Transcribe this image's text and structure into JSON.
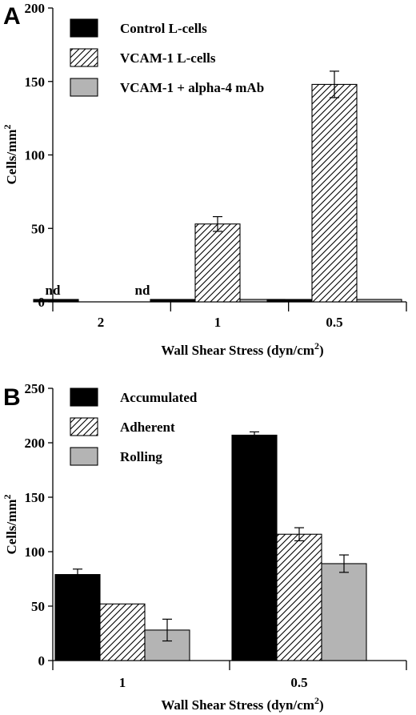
{
  "chart_data": [
    {
      "panel": "A",
      "type": "bar",
      "categories": [
        "2",
        "1",
        "0.5"
      ],
      "xlabel": "Wall Shear Stress (dyn/cm²)",
      "ylabel": "Cells/mm²",
      "ylim": [
        0,
        200
      ],
      "yticks": [
        0,
        50,
        100,
        150,
        200
      ],
      "legend_position": "top-left",
      "grid": false,
      "series": [
        {
          "name": "Control L-cells",
          "values": [
            0.5,
            0.5,
            0.5
          ],
          "errors": [
            0,
            0,
            0
          ],
          "fill": "black"
        },
        {
          "name": "VCAM-1 L-cells",
          "values": [
            null,
            53,
            148
          ],
          "errors": [
            0,
            5,
            9
          ],
          "fill": "hatch"
        },
        {
          "name": "VCAM-1 + alpha-4 mAb",
          "values": [
            null,
            0.5,
            0.5
          ],
          "errors": [
            0,
            0,
            0
          ],
          "fill": "gray"
        }
      ],
      "annotations": [
        {
          "text": "nd",
          "category": 0,
          "series": 0
        },
        {
          "text": "nd",
          "category": 0,
          "series": 2
        }
      ]
    },
    {
      "panel": "B",
      "type": "bar",
      "categories": [
        "1",
        "0.5"
      ],
      "xlabel": "Wall Shear Stress (dyn/cm²)",
      "ylabel": "Cells/mm²",
      "ylim": [
        0,
        250
      ],
      "yticks": [
        0,
        50,
        100,
        150,
        200,
        250
      ],
      "legend_position": "top-left",
      "grid": false,
      "series": [
        {
          "name": "Accumulated",
          "values": [
            79,
            207
          ],
          "errors": [
            5,
            3
          ],
          "fill": "black"
        },
        {
          "name": "Adherent",
          "values": [
            52,
            116
          ],
          "errors": [
            0,
            6
          ],
          "fill": "hatch"
        },
        {
          "name": "Rolling",
          "values": [
            28,
            89
          ],
          "errors": [
            10,
            8
          ],
          "fill": "gray"
        }
      ]
    }
  ],
  "colors": {
    "black": "#000000",
    "gray": "#b4b4b4",
    "hatch_line": "#000000",
    "background": "#ffffff"
  }
}
